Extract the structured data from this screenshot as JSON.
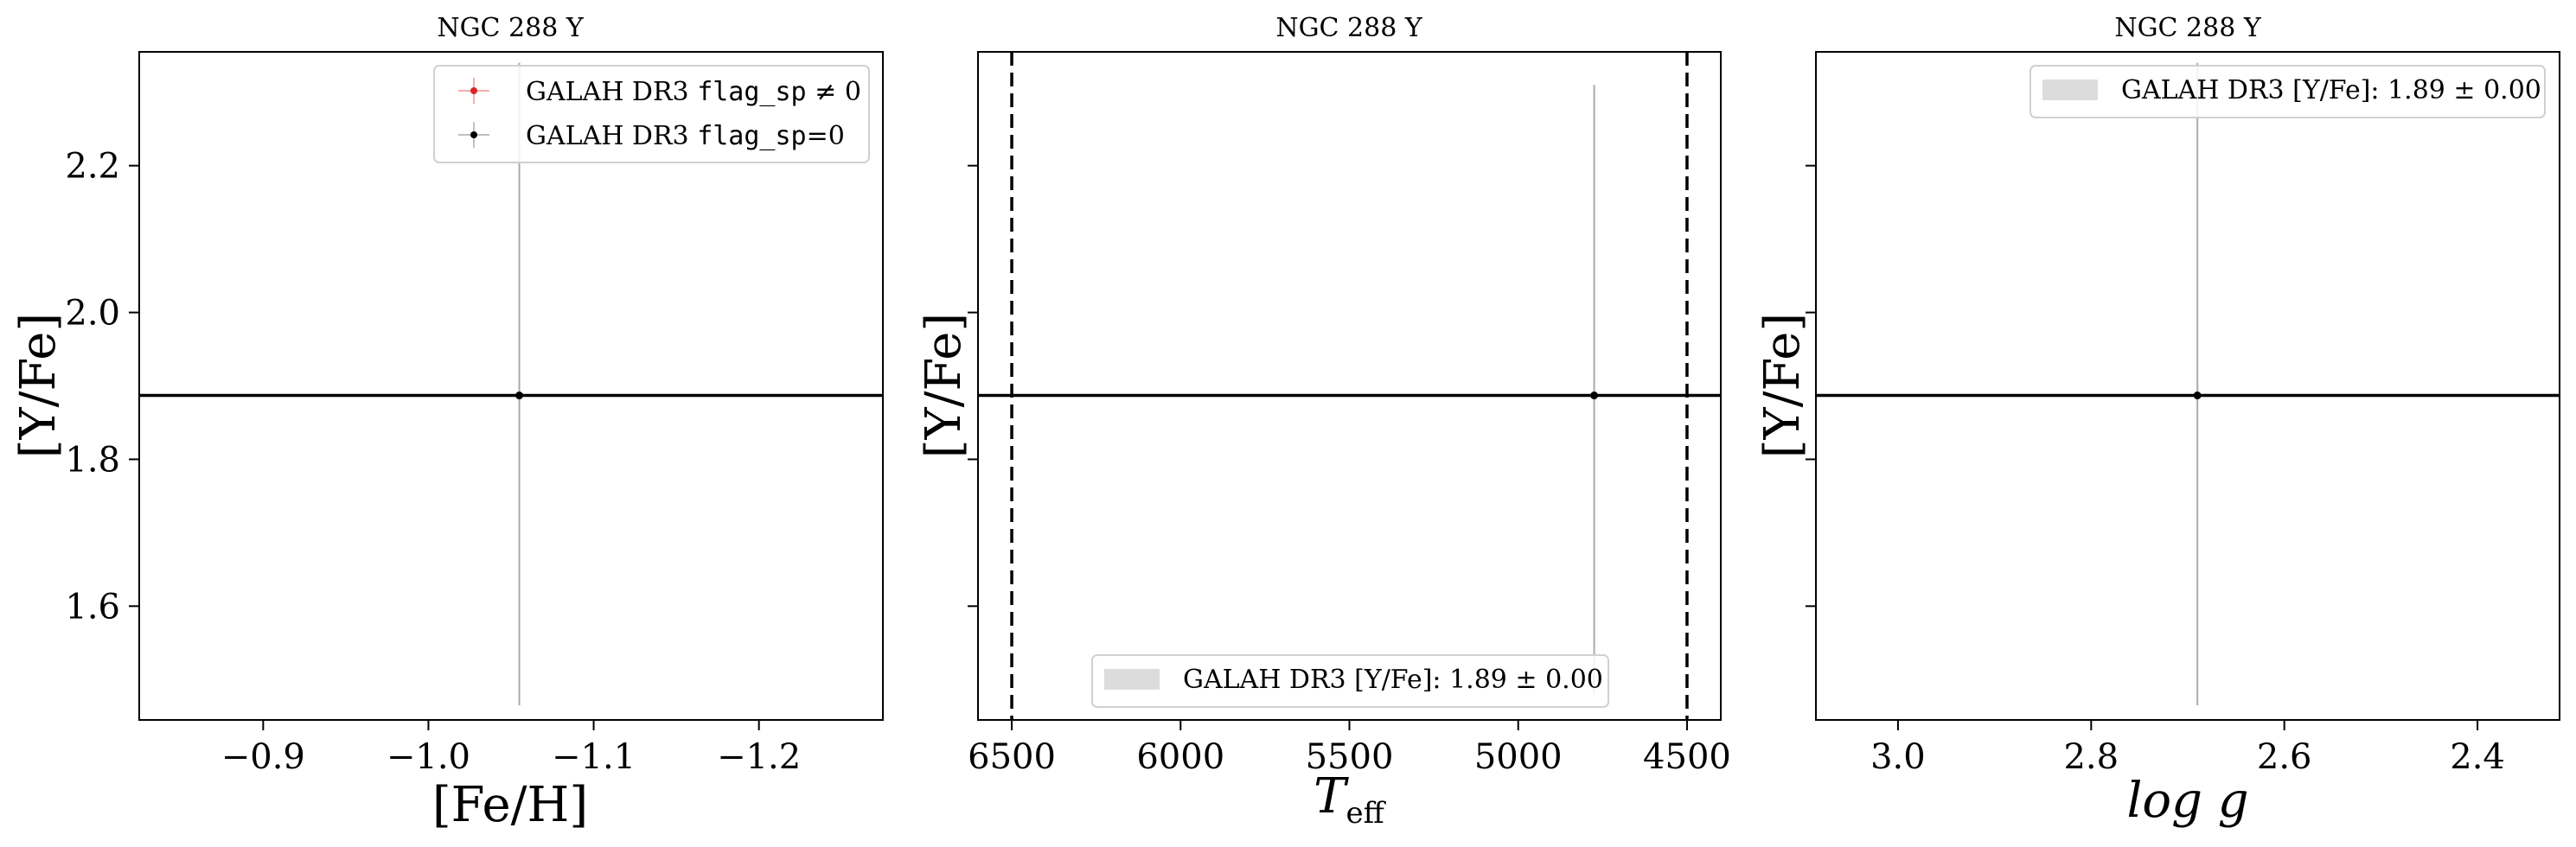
{
  "chart_data": [
    {
      "type": "scatter",
      "title": "NGC 288 Y",
      "xlabel": "[Fe/H]",
      "ylabel": "[Y/Fe]",
      "xlim": [
        -0.825,
        -1.275
      ],
      "ylim": [
        1.445,
        2.355
      ],
      "x_inverted": true,
      "xticks": [
        -0.9,
        -1.0,
        -1.1,
        -1.2
      ],
      "xtick_labels": [
        "−0.9",
        "−1.0",
        "−1.1",
        "−1.2"
      ],
      "yticks": [
        1.6,
        1.8,
        2.0,
        2.2
      ],
      "ytick_labels": [
        "1.6",
        "1.8",
        "2.0",
        "2.2"
      ],
      "hline": 1.887,
      "points": [
        {
          "x": -1.055,
          "y": 1.887,
          "yerr_low": 1.465,
          "yerr_high": 2.34
        }
      ],
      "legend": {
        "position": "top-right",
        "entries": [
          {
            "prefix": "GALAH DR3 ",
            "mono": "flag_sp",
            "suffix": " ≠ 0",
            "color": "#d62728"
          },
          {
            "prefix": "GALAH DR3 ",
            "mono": "flag_sp",
            "suffix": "=0",
            "color": "#000000"
          }
        ]
      }
    },
    {
      "type": "scatter",
      "title": "NGC 288 Y",
      "xlabel_main": "T",
      "xlabel_sub": "eff",
      "ylabel": "[Y/Fe]",
      "xlim": [
        6600,
        4400
      ],
      "ylim": [
        1.445,
        2.355
      ],
      "x_inverted": true,
      "xticks": [
        6500,
        6000,
        5500,
        5000,
        4500
      ],
      "xtick_labels": [
        "6500",
        "6000",
        "5500",
        "5000",
        "4500"
      ],
      "yticks": [
        1.6,
        1.8,
        2.0,
        2.2
      ],
      "hline": 1.887,
      "vlines": [
        6500,
        4500
      ],
      "points": [
        {
          "x": 4775,
          "y": 1.887,
          "yerr_low": 1.48,
          "yerr_high": 2.31
        }
      ],
      "legend": {
        "position": "bottom-center",
        "entries": [
          {
            "label": "GALAH DR3 [Y/Fe]: 1.89 ± 0.00",
            "color": "#dcdcdc"
          }
        ]
      }
    },
    {
      "type": "scatter",
      "title": "NGC 288 Y",
      "xlabel": "log g",
      "ylabel": "[Y/Fe]",
      "xlim": [
        3.085,
        2.315
      ],
      "ylim": [
        1.445,
        2.355
      ],
      "x_inverted": true,
      "xticks": [
        3.0,
        2.8,
        2.6,
        2.4
      ],
      "xtick_labels": [
        "3.0",
        "2.8",
        "2.6",
        "2.4"
      ],
      "yticks": [
        1.6,
        1.8,
        2.0,
        2.2
      ],
      "hline": 1.887,
      "points": [
        {
          "x": 2.69,
          "y": 1.887,
          "yerr_low": 1.465,
          "yerr_high": 2.34
        }
      ],
      "legend": {
        "position": "top-right",
        "entries": [
          {
            "label": "GALAH DR3 [Y/Fe]: 1.89 ± 0.00",
            "color": "#dcdcdc"
          }
        ]
      }
    }
  ]
}
